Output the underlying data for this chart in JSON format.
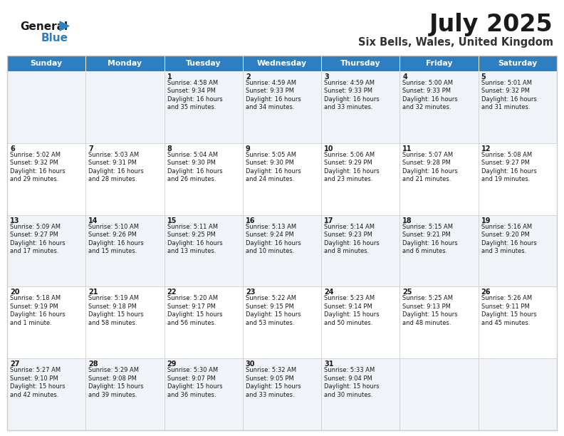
{
  "title": "July 2025",
  "subtitle": "Six Bells, Wales, United Kingdom",
  "header_color": "#2E7FC1",
  "header_text_color": "#FFFFFF",
  "border_color": "#CCCCCC",
  "day_headers": [
    "Sunday",
    "Monday",
    "Tuesday",
    "Wednesday",
    "Thursday",
    "Friday",
    "Saturday"
  ],
  "calendar_data": [
    [
      "",
      "",
      "1\nSunrise: 4:58 AM\nSunset: 9:34 PM\nDaylight: 16 hours\nand 35 minutes.",
      "2\nSunrise: 4:59 AM\nSunset: 9:33 PM\nDaylight: 16 hours\nand 34 minutes.",
      "3\nSunrise: 4:59 AM\nSunset: 9:33 PM\nDaylight: 16 hours\nand 33 minutes.",
      "4\nSunrise: 5:00 AM\nSunset: 9:33 PM\nDaylight: 16 hours\nand 32 minutes.",
      "5\nSunrise: 5:01 AM\nSunset: 9:32 PM\nDaylight: 16 hours\nand 31 minutes."
    ],
    [
      "6\nSunrise: 5:02 AM\nSunset: 9:32 PM\nDaylight: 16 hours\nand 29 minutes.",
      "7\nSunrise: 5:03 AM\nSunset: 9:31 PM\nDaylight: 16 hours\nand 28 minutes.",
      "8\nSunrise: 5:04 AM\nSunset: 9:30 PM\nDaylight: 16 hours\nand 26 minutes.",
      "9\nSunrise: 5:05 AM\nSunset: 9:30 PM\nDaylight: 16 hours\nand 24 minutes.",
      "10\nSunrise: 5:06 AM\nSunset: 9:29 PM\nDaylight: 16 hours\nand 23 minutes.",
      "11\nSunrise: 5:07 AM\nSunset: 9:28 PM\nDaylight: 16 hours\nand 21 minutes.",
      "12\nSunrise: 5:08 AM\nSunset: 9:27 PM\nDaylight: 16 hours\nand 19 minutes."
    ],
    [
      "13\nSunrise: 5:09 AM\nSunset: 9:27 PM\nDaylight: 16 hours\nand 17 minutes.",
      "14\nSunrise: 5:10 AM\nSunset: 9:26 PM\nDaylight: 16 hours\nand 15 minutes.",
      "15\nSunrise: 5:11 AM\nSunset: 9:25 PM\nDaylight: 16 hours\nand 13 minutes.",
      "16\nSunrise: 5:13 AM\nSunset: 9:24 PM\nDaylight: 16 hours\nand 10 minutes.",
      "17\nSunrise: 5:14 AM\nSunset: 9:23 PM\nDaylight: 16 hours\nand 8 minutes.",
      "18\nSunrise: 5:15 AM\nSunset: 9:21 PM\nDaylight: 16 hours\nand 6 minutes.",
      "19\nSunrise: 5:16 AM\nSunset: 9:20 PM\nDaylight: 16 hours\nand 3 minutes."
    ],
    [
      "20\nSunrise: 5:18 AM\nSunset: 9:19 PM\nDaylight: 16 hours\nand 1 minute.",
      "21\nSunrise: 5:19 AM\nSunset: 9:18 PM\nDaylight: 15 hours\nand 58 minutes.",
      "22\nSunrise: 5:20 AM\nSunset: 9:17 PM\nDaylight: 15 hours\nand 56 minutes.",
      "23\nSunrise: 5:22 AM\nSunset: 9:15 PM\nDaylight: 15 hours\nand 53 minutes.",
      "24\nSunrise: 5:23 AM\nSunset: 9:14 PM\nDaylight: 15 hours\nand 50 minutes.",
      "25\nSunrise: 5:25 AM\nSunset: 9:13 PM\nDaylight: 15 hours\nand 48 minutes.",
      "26\nSunrise: 5:26 AM\nSunset: 9:11 PM\nDaylight: 15 hours\nand 45 minutes."
    ],
    [
      "27\nSunrise: 5:27 AM\nSunset: 9:10 PM\nDaylight: 15 hours\nand 42 minutes.",
      "28\nSunrise: 5:29 AM\nSunset: 9:08 PM\nDaylight: 15 hours\nand 39 minutes.",
      "29\nSunrise: 5:30 AM\nSunset: 9:07 PM\nDaylight: 15 hours\nand 36 minutes.",
      "30\nSunrise: 5:32 AM\nSunset: 9:05 PM\nDaylight: 15 hours\nand 33 minutes.",
      "31\nSunrise: 5:33 AM\nSunset: 9:04 PM\nDaylight: 15 hours\nand 30 minutes.",
      "",
      ""
    ]
  ],
  "logo_color_general": "#1A1A1A",
  "logo_color_blue": "#2E7FC1",
  "fig_width": 7.92,
  "fig_height": 6.12,
  "dpi": 100
}
